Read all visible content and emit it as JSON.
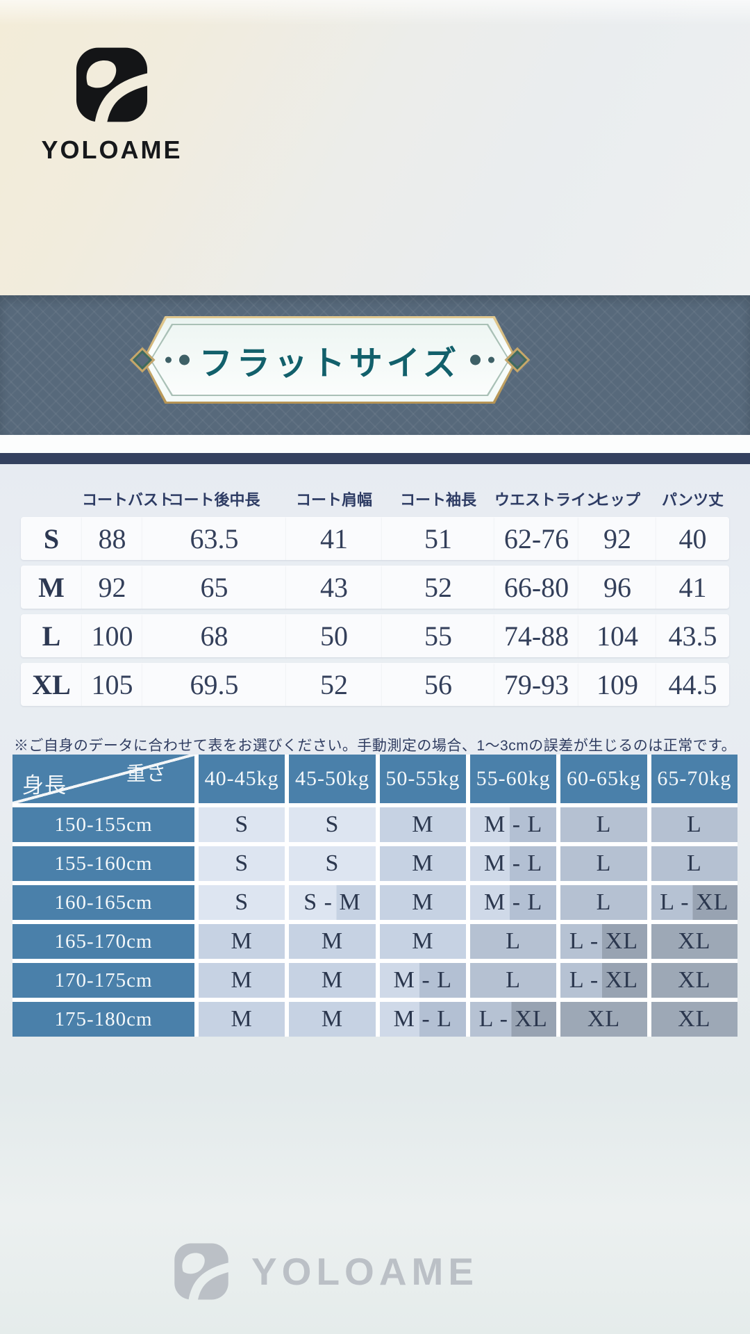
{
  "brand": {
    "name": "YOLOAME"
  },
  "banner": {
    "title": "フラットサイズ"
  },
  "flat_size_table": {
    "size_column_header": "",
    "columns": [
      "コートバスト",
      "コート後中長",
      "コート肩幅",
      "コート袖長",
      "ウエストライン",
      "ヒップ",
      "パンツ丈"
    ],
    "rows": [
      {
        "size": "S",
        "values": [
          "88",
          "63.5",
          "41",
          "51",
          "62-76",
          "92",
          "40"
        ]
      },
      {
        "size": "M",
        "values": [
          "92",
          "65",
          "43",
          "52",
          "66-80",
          "96",
          "41"
        ]
      },
      {
        "size": "L",
        "values": [
          "100",
          "68",
          "50",
          "55",
          "74-88",
          "104",
          "43.5"
        ]
      },
      {
        "size": "XL",
        "values": [
          "105",
          "69.5",
          "52",
          "56",
          "79-93",
          "109",
          "44.5"
        ]
      }
    ]
  },
  "note": "※ご自身のデータに合わせて表をお選びください。手動測定の場合、1〜3cmの誤差が生じるのは正常です。",
  "size_matrix": {
    "corner": {
      "top": "重さ",
      "bottom": "身長"
    },
    "weight_columns": [
      "40-45kg",
      "45-50kg",
      "50-55kg",
      "55-60kg",
      "60-65kg",
      "65-70kg"
    ],
    "rows": [
      {
        "height": "150-155cm",
        "sizes": [
          "S",
          "S",
          "M",
          "M - L",
          "L",
          "L"
        ]
      },
      {
        "height": "155-160cm",
        "sizes": [
          "S",
          "S",
          "M",
          "M - L",
          "L",
          "L"
        ]
      },
      {
        "height": "160-165cm",
        "sizes": [
          "S",
          "S - M",
          "M",
          "M - L",
          "L",
          "L - XL"
        ]
      },
      {
        "height": "165-170cm",
        "sizes": [
          "M",
          "M",
          "M",
          "L",
          "L - XL",
          "XL"
        ]
      },
      {
        "height": "170-175cm",
        "sizes": [
          "M",
          "M",
          "M - L",
          "L",
          "L - XL",
          "XL"
        ]
      },
      {
        "height": "175-180cm",
        "sizes": [
          "M",
          "M",
          "M - L",
          "L - XL",
          "XL",
          "XL"
        ]
      }
    ]
  },
  "watermark": {
    "name": "YOLOAME"
  },
  "colors": {
    "accent_teal": "#12606b",
    "banner_bg": "#57697b",
    "navy": "#34415f",
    "matrix_blue": "#4a80aa",
    "gold": "#c6a76a",
    "value_navy": "#333f5a",
    "watermark_gray": "#b8bdc3"
  }
}
